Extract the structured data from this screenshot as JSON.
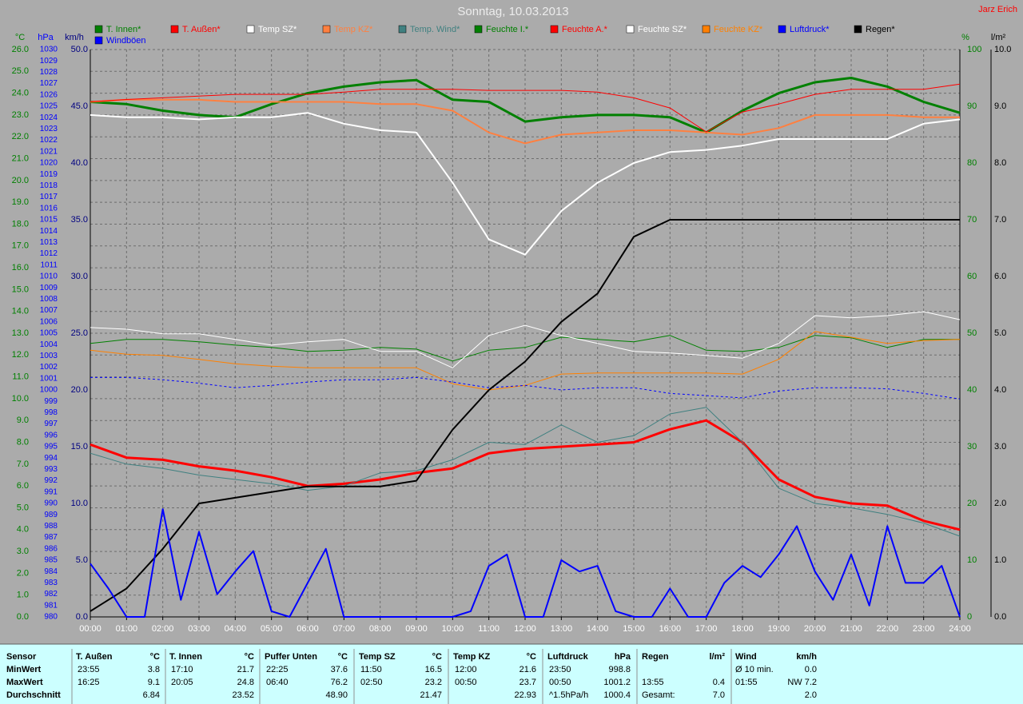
{
  "chart_data": {
    "type": "line",
    "title": "Sonntag, 10.03.2013",
    "author": "Jarz Erich",
    "x": [
      0,
      1,
      2,
      3,
      4,
      5,
      6,
      7,
      8,
      9,
      10,
      11,
      12,
      13,
      14,
      15,
      16,
      17,
      18,
      19,
      20,
      21,
      22,
      23,
      24
    ],
    "xlim": [
      0,
      24
    ],
    "xticks": [
      {
        "value": 0,
        "label": "00:00"
      },
      {
        "value": 1,
        "label": "01:00"
      },
      {
        "value": 2,
        "label": "02:00"
      },
      {
        "value": 3,
        "label": "03:00"
      },
      {
        "value": 4,
        "label": "04:00"
      },
      {
        "value": 5,
        "label": "05:00"
      },
      {
        "value": 6,
        "label": "06:00"
      },
      {
        "value": 7,
        "label": "07:00"
      },
      {
        "value": 8,
        "label": "08:00"
      },
      {
        "value": 9,
        "label": "09:00"
      },
      {
        "value": 10,
        "label": "10:00"
      },
      {
        "value": 11,
        "label": "11:00"
      },
      {
        "value": 12,
        "label": "12:00"
      },
      {
        "value": 13,
        "label": "13:00"
      },
      {
        "value": 14,
        "label": "14:00"
      },
      {
        "value": 15,
        "label": "15:00"
      },
      {
        "value": 16,
        "label": "16:00"
      },
      {
        "value": 17,
        "label": "17:00"
      },
      {
        "value": 18,
        "label": "18:00"
      },
      {
        "value": 19,
        "label": "19:00"
      },
      {
        "value": 20,
        "label": "20:00"
      },
      {
        "value": 21,
        "label": "21:00"
      },
      {
        "value": 22,
        "label": "22:00"
      },
      {
        "value": 23,
        "label": "23:00"
      },
      {
        "value": 24,
        "label": "24:00"
      }
    ],
    "grid": true,
    "axes": [
      {
        "label": "°C",
        "color": "#008000",
        "lim": [
          0,
          26
        ],
        "ticks": [
          {
            "value": 0,
            "label": "0.0"
          },
          {
            "value": 1,
            "label": "1.0"
          },
          {
            "value": 2,
            "label": "2.0"
          },
          {
            "value": 3,
            "label": "3.0"
          },
          {
            "value": 4,
            "label": "4.0"
          },
          {
            "value": 5,
            "label": "5.0"
          },
          {
            "value": 6,
            "label": "6.0"
          },
          {
            "value": 7,
            "label": "7.0"
          },
          {
            "value": 8,
            "label": "8.0"
          },
          {
            "value": 9,
            "label": "9.0"
          },
          {
            "value": 10,
            "label": "10.0"
          },
          {
            "value": 11,
            "label": "11.0"
          },
          {
            "value": 12,
            "label": "12.0"
          },
          {
            "value": 13,
            "label": "13.0"
          },
          {
            "value": 14,
            "label": "14.0"
          },
          {
            "value": 15,
            "label": "15.0"
          },
          {
            "value": 16,
            "label": "16.0"
          },
          {
            "value": 17,
            "label": "17.0"
          },
          {
            "value": 18,
            "label": "18.0"
          },
          {
            "value": 19,
            "label": "19.0"
          },
          {
            "value": 20,
            "label": "20.0"
          },
          {
            "value": 21,
            "label": "21.0"
          },
          {
            "value": 22,
            "label": "22.0"
          },
          {
            "value": 23,
            "label": "23.0"
          },
          {
            "value": 24,
            "label": "24.0"
          },
          {
            "value": 25,
            "label": "25.0"
          },
          {
            "value": 26,
            "label": "26.0"
          }
        ]
      },
      {
        "label": "hPa",
        "color": "#0000ff",
        "lim": [
          980,
          1030
        ],
        "ticks": [
          980,
          981,
          982,
          983,
          984,
          985,
          986,
          987,
          988,
          989,
          990,
          991,
          992,
          993,
          994,
          995,
          996,
          997,
          998,
          999,
          1000,
          1001,
          1002,
          1003,
          1004,
          1005,
          1006,
          1007,
          1008,
          1009,
          1010,
          1011,
          1012,
          1013,
          1014,
          1015,
          1016,
          1017,
          1018,
          1019,
          1020,
          1021,
          1022,
          1023,
          1024,
          1025,
          1026,
          1027,
          1028,
          1029,
          1030
        ]
      },
      {
        "label": "km/h",
        "color": "#000080",
        "lim": [
          0,
          50
        ],
        "ticks": [
          {
            "value": 0,
            "label": "0.0"
          },
          {
            "value": 5,
            "label": "5.0"
          },
          {
            "value": 10,
            "label": "10.0"
          },
          {
            "value": 15,
            "label": "15.0"
          },
          {
            "value": 20,
            "label": "20.0"
          },
          {
            "value": 25,
            "label": "25.0"
          },
          {
            "value": 30,
            "label": "30.0"
          },
          {
            "value": 35,
            "label": "35.0"
          },
          {
            "value": 40,
            "label": "40.0"
          },
          {
            "value": 45,
            "label": "45.0"
          },
          {
            "value": 50,
            "label": "50.0"
          }
        ]
      },
      {
        "label": "%",
        "color": "#008000",
        "lim": [
          0,
          100
        ],
        "ticks": [
          0,
          10,
          20,
          30,
          40,
          50,
          60,
          70,
          80,
          90,
          100
        ]
      },
      {
        "label": "l/m²",
        "color": "#000000",
        "lim": [
          0,
          10
        ],
        "ticks": [
          {
            "value": 0,
            "label": "0.0"
          },
          {
            "value": 1,
            "label": "1.0"
          },
          {
            "value": 2,
            "label": "2.0"
          },
          {
            "value": 3,
            "label": "3.0"
          },
          {
            "value": 4,
            "label": "4.0"
          },
          {
            "value": 5,
            "label": "5.0"
          },
          {
            "value": 6,
            "label": "6.0"
          },
          {
            "value": 7,
            "label": "7.0"
          },
          {
            "value": 8,
            "label": "8.0"
          },
          {
            "value": 9,
            "label": "9.0"
          },
          {
            "value": 10,
            "label": "10.0"
          }
        ]
      }
    ],
    "series": [
      {
        "name": "T. Innen*",
        "color": "#008000",
        "axis": 0,
        "line_width": 3,
        "values": [
          23.6,
          23.5,
          23.2,
          23.0,
          22.9,
          23.5,
          24.0,
          24.3,
          24.5,
          24.6,
          23.7,
          23.6,
          22.7,
          22.9,
          23.0,
          23.0,
          22.9,
          22.2,
          23.2,
          24.0,
          24.5,
          24.7,
          24.3,
          23.6,
          23.1
        ]
      },
      {
        "name": "T. Außen*",
        "color": "#ff0000",
        "axis": 0,
        "line_width": 3,
        "values": [
          7.9,
          7.3,
          7.2,
          6.9,
          6.7,
          6.4,
          6.0,
          6.1,
          6.3,
          6.6,
          6.8,
          7.5,
          7.7,
          7.8,
          7.9,
          8.0,
          8.6,
          9.0,
          8.0,
          6.3,
          5.5,
          5.2,
          5.1,
          4.4,
          4.0
        ]
      },
      {
        "name": "Temp SZ*",
        "color": "#ffffff",
        "axis": 0,
        "line_width": 2,
        "values": [
          23.0,
          22.9,
          22.9,
          22.8,
          22.9,
          22.9,
          23.1,
          22.6,
          22.3,
          22.2,
          19.9,
          17.3,
          16.6,
          18.6,
          19.9,
          20.8,
          21.3,
          21.4,
          21.6,
          21.9,
          21.9,
          21.9,
          21.9,
          22.6,
          22.8
        ]
      },
      {
        "name": "Temp KZ*",
        "color": "#ff8040",
        "axis": 0,
        "line_width": 2,
        "values": [
          23.6,
          23.7,
          23.7,
          23.7,
          23.6,
          23.6,
          23.6,
          23.6,
          23.5,
          23.5,
          23.2,
          22.2,
          21.7,
          22.1,
          22.2,
          22.3,
          22.3,
          22.2,
          22.1,
          22.4,
          23.0,
          23.0,
          23.0,
          22.9,
          22.9
        ]
      },
      {
        "name": "Temp. Wind*",
        "color": "#408080",
        "axis": 0,
        "line_width": 1,
        "values": [
          7.5,
          7.0,
          6.8,
          6.5,
          6.3,
          6.1,
          5.8,
          6.0,
          6.6,
          6.7,
          7.2,
          8.0,
          7.9,
          8.8,
          8.0,
          8.3,
          9.3,
          9.6,
          8.0,
          5.9,
          5.2,
          5.0,
          4.7,
          4.3,
          3.7
        ]
      },
      {
        "name": "Feuchte I.*",
        "color": "#008000",
        "axis": 3,
        "line_width": 1,
        "values": [
          48.2,
          48.9,
          48.9,
          48.5,
          47.9,
          47.5,
          46.8,
          47.0,
          47.5,
          47.2,
          45.1,
          47.0,
          47.5,
          49.3,
          48.9,
          48.5,
          49.6,
          47.0,
          46.8,
          47.5,
          49.6,
          49.2,
          47.5,
          48.9,
          48.9
        ]
      },
      {
        "name": "Feuchte A.*",
        "color": "#ff0000",
        "axis": 3,
        "line_width": 1,
        "values": [
          90.8,
          91.2,
          91.5,
          91.8,
          92.1,
          92.1,
          92.1,
          92.5,
          93.0,
          93.0,
          93.0,
          92.8,
          92.8,
          92.8,
          92.5,
          91.5,
          89.7,
          85.5,
          89.0,
          90.4,
          92.1,
          93.0,
          93.0,
          93.0,
          93.9
        ]
      },
      {
        "name": "Feuchte SZ*",
        "color": "#ffffff",
        "axis": 3,
        "line_width": 1,
        "values": [
          51.0,
          50.7,
          49.9,
          49.9,
          48.9,
          47.9,
          48.5,
          48.9,
          46.8,
          46.8,
          43.9,
          49.6,
          51.4,
          49.6,
          48.2,
          46.8,
          46.5,
          46.1,
          45.6,
          48.2,
          53.1,
          52.7,
          53.1,
          53.8,
          52.4
        ]
      },
      {
        "name": "Feuchte KZ*",
        "color": "#ff8000",
        "axis": 3,
        "line_width": 1,
        "values": [
          47.0,
          46.3,
          46.1,
          45.4,
          44.6,
          44.2,
          43.9,
          43.9,
          43.9,
          43.9,
          41.1,
          40.0,
          40.8,
          42.8,
          43.0,
          43.0,
          43.0,
          43.0,
          42.8,
          45.4,
          50.3,
          49.3,
          48.2,
          48.7,
          48.9
        ]
      },
      {
        "name": "Luftdruck*",
        "color": "#0000ff",
        "axis": 1,
        "line_width": 1,
        "dashed": true,
        "values": [
          1001.1,
          1001.1,
          1000.9,
          1000.6,
          1000.2,
          1000.4,
          1000.7,
          1000.9,
          1000.9,
          1001.1,
          1000.7,
          1000.2,
          1000.4,
          1000.0,
          1000.2,
          1000.2,
          999.7,
          999.5,
          999.3,
          999.9,
          1000.2,
          1000.2,
          1000.1,
          999.7,
          999.2
        ]
      },
      {
        "name": "Regen*",
        "color": "#000000",
        "axis": 4,
        "line_width": 2,
        "values": [
          0.1,
          0.5,
          1.2,
          2.0,
          2.1,
          2.2,
          2.3,
          2.3,
          2.3,
          2.4,
          3.3,
          4.0,
          4.5,
          5.2,
          5.7,
          6.7,
          7.0,
          7.0,
          7.0,
          7.0,
          7.0,
          7.0,
          7.0,
          7.0,
          7.0
        ]
      },
      {
        "name": "Windböen",
        "color": "#0000ff",
        "axis": 2,
        "line_width": 2,
        "x": [
          0,
          0.5,
          1,
          1.5,
          2,
          2.5,
          3,
          3.5,
          4,
          4.5,
          5,
          5.5,
          6,
          6.5,
          7,
          7.5,
          8,
          8.5,
          9,
          9.5,
          10,
          10.5,
          11,
          11.5,
          12,
          12.5,
          13,
          13.5,
          14,
          14.5,
          15,
          15.5,
          16,
          16.5,
          17,
          17.5,
          18,
          18.5,
          19,
          19.5,
          20,
          20.5,
          21,
          21.5,
          22,
          22.5,
          23,
          23.5,
          24
        ],
        "values": [
          4.7,
          2.5,
          0,
          0,
          9.5,
          1.5,
          7.5,
          2,
          4,
          5.8,
          0.5,
          0,
          3,
          6,
          0,
          0,
          0,
          0,
          0,
          0,
          0,
          0.5,
          4.5,
          5.5,
          0,
          0,
          5,
          4,
          4.5,
          0.5,
          0,
          0,
          2.5,
          0,
          0,
          3,
          4.5,
          3.5,
          5.5,
          8,
          4,
          1.5,
          5.5,
          1,
          8,
          3,
          3,
          4.5,
          0
        ]
      }
    ]
  },
  "table": {
    "header": [
      "Sensor",
      "T. Außen",
      "°C",
      "T. Innen",
      "°C",
      "Puffer Unten",
      "°C",
      "Temp SZ",
      "°C",
      "Temp KZ",
      "°C",
      "Luftdruck",
      "hPa",
      "Regen",
      "l/m²",
      "Wind",
      "km/h"
    ],
    "rows": [
      {
        "label": "MinWert",
        "cells": [
          "23:55",
          "3.8",
          "17:10",
          "21.7",
          "22:25",
          "37.6",
          "11:50",
          "16.5",
          "12:00",
          "21.6",
          "23:50",
          "998.8",
          null,
          null,
          "Ø 10 min.",
          "0.0"
        ]
      },
      {
        "label": "MaxWert",
        "cells": [
          "16:25",
          "9.1",
          "20:05",
          "24.8",
          "06:40",
          "76.2",
          "02:50",
          "23.2",
          "00:50",
          "23.7",
          "00:50",
          "1001.2",
          "13:55",
          "0.4",
          "01:55",
          "NW 7.2"
        ]
      },
      {
        "label": "Durchschnitt",
        "cells": [
          null,
          "6.84",
          null,
          "23.52",
          null,
          "48.90",
          null,
          "21.47",
          null,
          "22.93",
          "^1.5hPa/h",
          "1000.4",
          "Gesamt:",
          "7.0",
          null,
          "2.0"
        ]
      }
    ]
  }
}
